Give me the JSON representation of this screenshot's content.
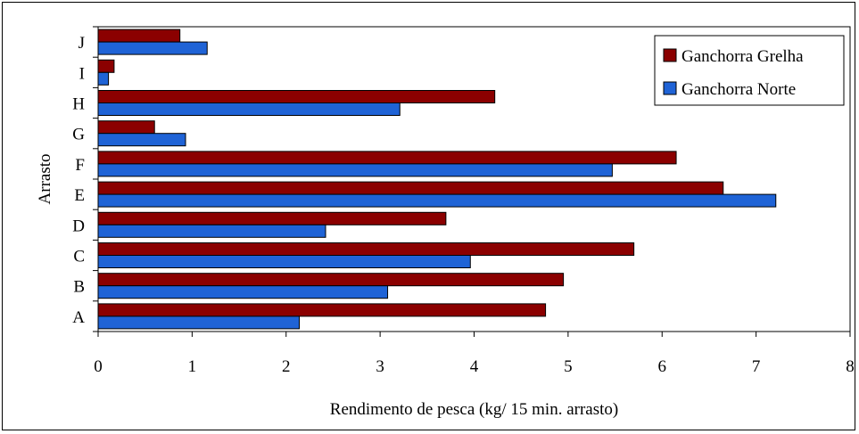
{
  "chart_data": {
    "type": "bar",
    "orientation": "horizontal",
    "categories": [
      "A",
      "B",
      "C",
      "D",
      "E",
      "F",
      "G",
      "H",
      "I",
      "J"
    ],
    "series": [
      {
        "name": "Ganchorra Grelha",
        "color": "#8B0000",
        "values": [
          4.76,
          4.95,
          5.7,
          3.7,
          6.65,
          6.15,
          0.6,
          4.22,
          0.17,
          0.87
        ]
      },
      {
        "name": "Ganchorra Norte",
        "color": "#1F63D6",
        "values": [
          2.14,
          3.08,
          3.96,
          2.42,
          7.21,
          5.47,
          0.93,
          3.21,
          0.11,
          1.16
        ]
      }
    ],
    "x_ticks": [
      "0",
      "1",
      "2",
      "3",
      "4",
      "5",
      "6",
      "7",
      "8"
    ],
    "xlim": [
      0,
      8
    ],
    "xlabel": "Rendimento de pesca (kg/ 15 min. arrasto)",
    "ylabel": "Arrasto",
    "grid": false,
    "legend_position": "top-right"
  }
}
